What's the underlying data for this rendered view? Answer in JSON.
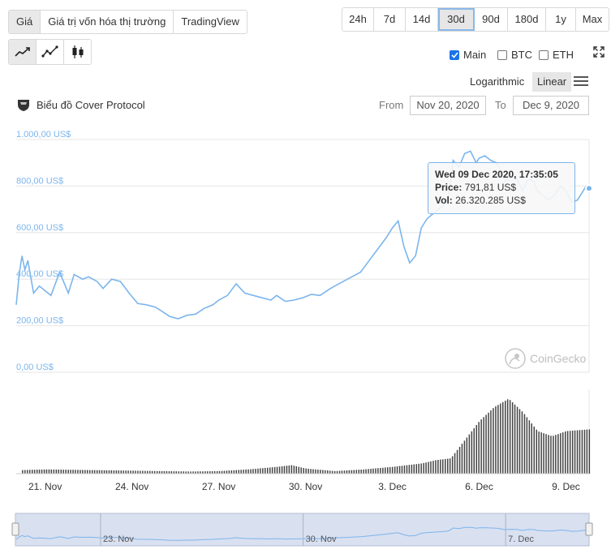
{
  "tabs": [
    "Giá",
    "Giá trị vốn hóa thị trường",
    "TradingView"
  ],
  "ranges": [
    "24h",
    "7d",
    "14d",
    "30d",
    "90d",
    "180d",
    "1y",
    "Max"
  ],
  "options": {
    "main": "Main",
    "btc": "BTC",
    "eth": "ETH"
  },
  "scale": {
    "log": "Logarithmic",
    "linear": "Linear"
  },
  "chart_title": "Biểu đồ Cover Protocol",
  "from_label": "From",
  "to_label": "To",
  "from_date": "Nov 20, 2020",
  "to_date": "Dec 9, 2020",
  "tooltip": {
    "date": "Wed 09 Dec 2020, 17:35:05",
    "price_label": "Price:",
    "price": "791,81 US$",
    "vol_label": "Vol:",
    "vol": "26.320.285 US$"
  },
  "watermark": "CoinGecko",
  "colors": {
    "line": "#7cb5ec",
    "volume": "#444444",
    "navigator": "#ccd6eb"
  },
  "chart_data": {
    "type": "line",
    "title": "Biểu đồ Cover Protocol",
    "ylim": [
      0,
      1000
    ],
    "y_ticks": [
      "1.000,00 US$",
      "800,00 US$",
      "600,00 US$",
      "400,00 US$",
      "200,00 US$",
      "0,00 US$"
    ],
    "y_tick_values": [
      1000,
      800,
      600,
      400,
      200,
      0
    ],
    "x_ticks": [
      "21. Nov",
      "24. Nov",
      "27. Nov",
      "30. Nov",
      "3. Dec",
      "6. Dec",
      "9. Dec"
    ],
    "x_tick_days": [
      1,
      4,
      7,
      10,
      13,
      16,
      19
    ],
    "nav_ticks": [
      "23. Nov",
      "30. Nov",
      "7. Dec"
    ],
    "nav_tick_days": [
      3,
      10,
      17
    ],
    "series": [
      {
        "x": [
          0.0,
          0.1,
          0.2,
          0.3,
          0.4,
          0.6,
          0.8,
          1.0,
          1.2,
          1.5,
          1.8,
          2.0,
          2.3,
          2.5,
          2.8,
          3.0,
          3.3,
          3.6,
          3.9,
          4.2,
          4.5,
          4.8,
          5.0,
          5.3,
          5.6,
          5.9,
          6.2,
          6.5,
          6.8,
          7.0,
          7.3,
          7.6,
          7.9,
          8.2,
          8.5,
          8.8,
          9.0,
          9.3,
          9.6,
          9.9,
          10.2,
          10.5,
          10.8,
          11.0,
          11.3,
          11.6,
          11.9,
          12.2,
          12.5,
          12.8,
          13.0,
          13.2,
          13.4,
          13.6,
          13.8,
          14.0,
          14.2,
          14.4,
          14.6,
          14.8,
          14.9,
          15.0,
          15.1,
          15.3,
          15.5,
          15.7,
          15.9,
          16.0,
          16.2,
          16.4,
          16.6,
          16.8,
          16.9,
          17.1,
          17.3,
          17.5,
          17.7,
          17.9,
          18.0,
          18.2,
          18.4,
          18.6,
          18.8,
          19.0,
          19.2,
          19.4,
          19.6,
          19.7,
          19.8
        ],
        "y": [
          290,
          420,
          500,
          440,
          480,
          340,
          370,
          350,
          330,
          430,
          340,
          420,
          400,
          410,
          390,
          360,
          400,
          390,
          340,
          295,
          290,
          280,
          265,
          240,
          230,
          245,
          250,
          275,
          290,
          310,
          330,
          380,
          340,
          330,
          320,
          310,
          330,
          305,
          310,
          320,
          335,
          330,
          355,
          370,
          390,
          410,
          430,
          480,
          530,
          580,
          620,
          650,
          540,
          470,
          500,
          620,
          660,
          680,
          700,
          720,
          740,
          800,
          910,
          880,
          940,
          950,
          900,
          920,
          930,
          910,
          900,
          850,
          820,
          840,
          830,
          780,
          830,
          820,
          780,
          760,
          740,
          760,
          800,
          780,
          730,
          740,
          780,
          800,
          790
        ]
      }
    ],
    "volume_profile": {
      "x": [
        0,
        1,
        2,
        3,
        4,
        5,
        6,
        7,
        8,
        9,
        9.5,
        10,
        11,
        12,
        13,
        14,
        14.5,
        15,
        15.5,
        16,
        16.5,
        17,
        17.5,
        18,
        18.5,
        19,
        19.8
      ],
      "v": [
        0.04,
        0.05,
        0.045,
        0.04,
        0.035,
        0.03,
        0.025,
        0.03,
        0.05,
        0.08,
        0.1,
        0.06,
        0.03,
        0.05,
        0.08,
        0.12,
        0.16,
        0.18,
        0.4,
        0.62,
        0.78,
        0.88,
        0.72,
        0.5,
        0.44,
        0.5,
        0.52
      ]
    }
  }
}
